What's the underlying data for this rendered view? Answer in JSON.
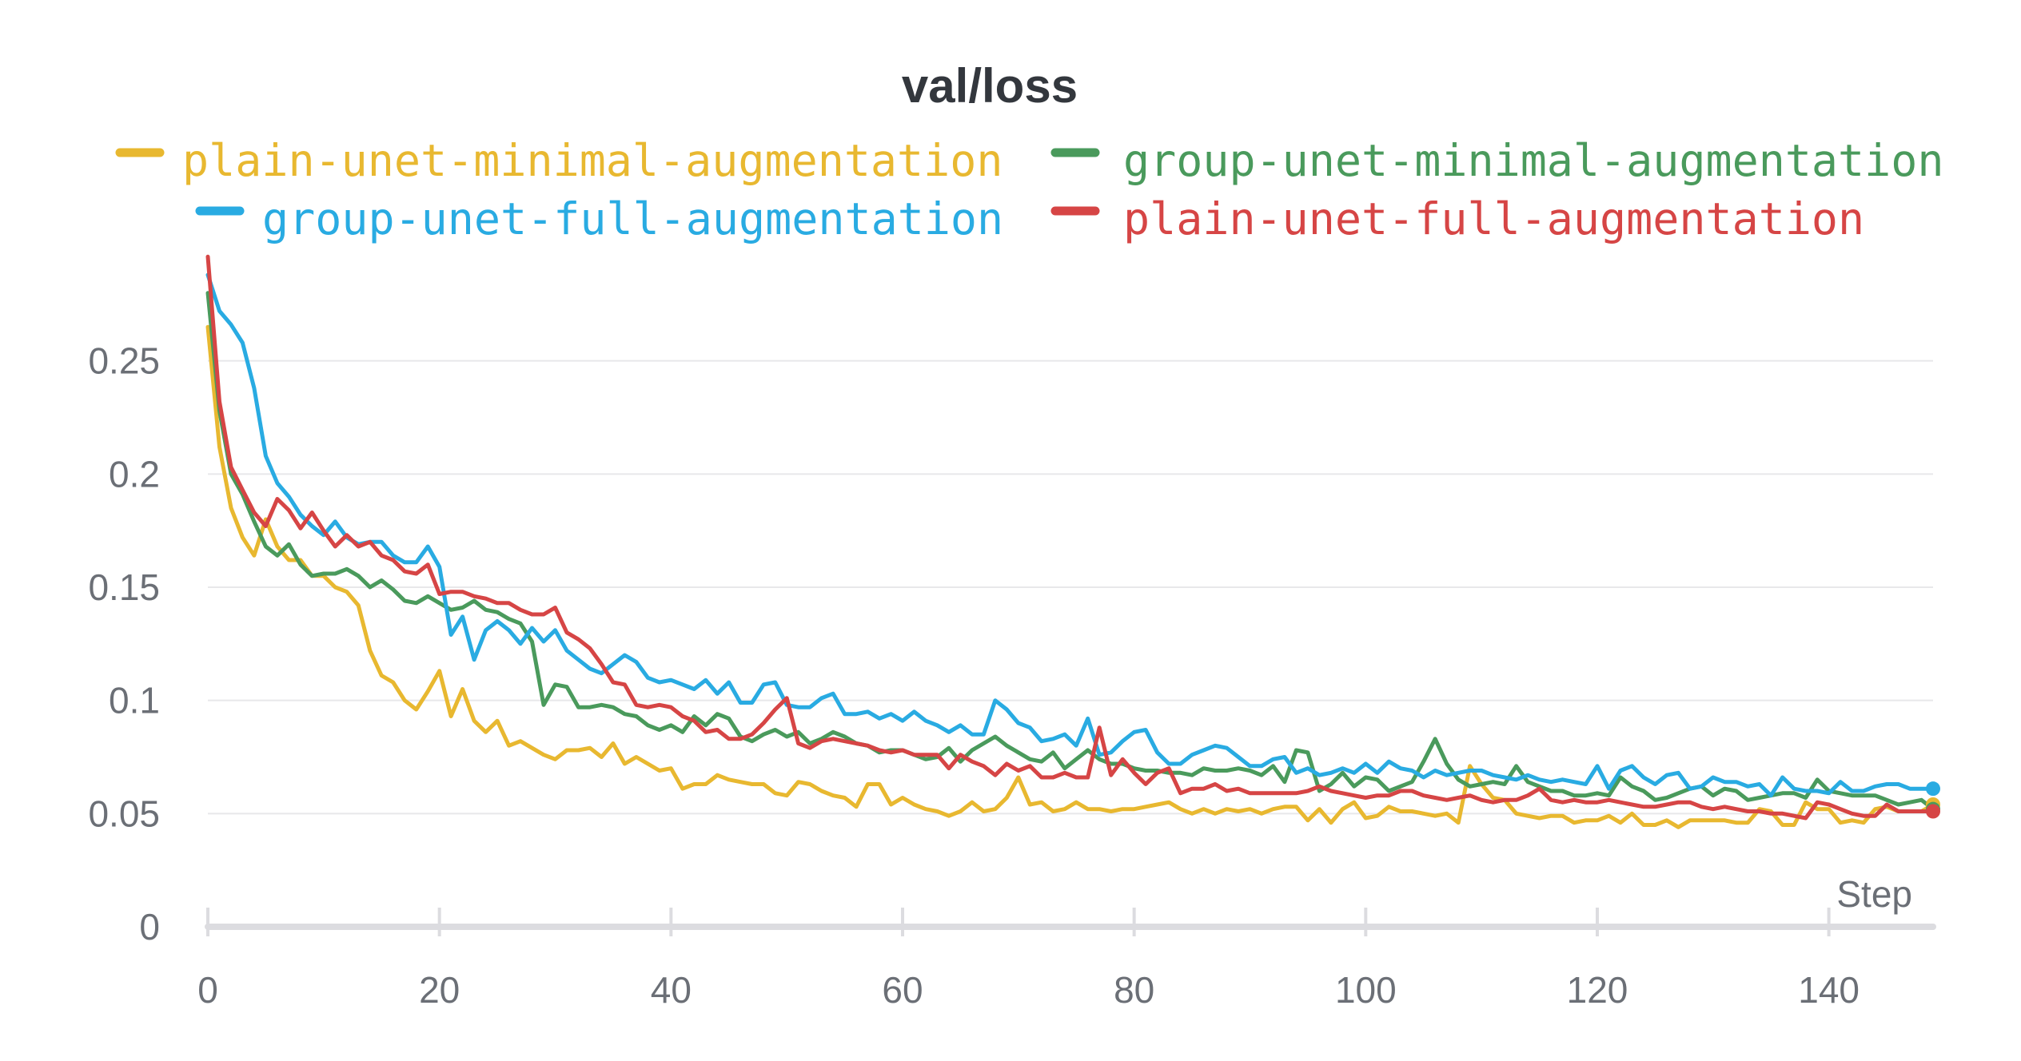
{
  "chart_data": {
    "type": "line",
    "title": "val/loss",
    "xlabel": "Step",
    "ylabel": "",
    "xlim": [
      0,
      149
    ],
    "ylim": [
      0,
      0.3
    ],
    "xticks": [
      0,
      20,
      40,
      60,
      80,
      100,
      120,
      140
    ],
    "xtick_labels": [
      "0",
      "20",
      "40",
      "60",
      "80",
      "100",
      "120",
      "140"
    ],
    "yticks": [
      0,
      0.05,
      0.1,
      0.15,
      0.2,
      0.25
    ],
    "ytick_labels": [
      "0",
      "0.05",
      "0.1",
      "0.15",
      "0.2",
      "0.25"
    ],
    "grid": true,
    "legend_position": "top",
    "series": [
      {
        "name": "plain-unet-minimal-augmentation",
        "color": "#e8b830",
        "values": [
          0.265,
          0.212,
          0.185,
          0.172,
          0.164,
          0.18,
          0.168,
          0.162,
          0.162,
          0.155,
          0.155,
          0.15,
          0.148,
          0.142,
          0.122,
          0.111,
          0.108,
          0.1,
          0.096,
          0.104,
          0.113,
          0.093,
          0.105,
          0.091,
          0.086,
          0.091,
          0.08,
          0.082,
          0.079,
          0.076,
          0.074,
          0.078,
          0.078,
          0.079,
          0.075,
          0.081,
          0.072,
          0.075,
          0.072,
          0.069,
          0.07,
          0.061,
          0.063,
          0.063,
          0.067,
          0.065,
          0.064,
          0.063,
          0.063,
          0.059,
          0.058,
          0.064,
          0.063,
          0.06,
          0.058,
          0.057,
          0.053,
          0.063,
          0.063,
          0.054,
          0.057,
          0.054,
          0.052,
          0.051,
          0.049,
          0.051,
          0.055,
          0.051,
          0.052,
          0.057,
          0.066,
          0.054,
          0.055,
          0.051,
          0.052,
          0.055,
          0.052,
          0.052,
          0.051,
          0.052,
          0.052,
          0.053,
          0.054,
          0.055,
          0.052,
          0.05,
          0.052,
          0.05,
          0.052,
          0.051,
          0.052,
          0.05,
          0.052,
          0.053,
          0.053,
          0.047,
          0.052,
          0.046,
          0.052,
          0.055,
          0.048,
          0.049,
          0.053,
          0.051,
          0.051,
          0.05,
          0.049,
          0.05,
          0.046,
          0.071,
          0.063,
          0.057,
          0.056,
          0.05,
          0.049,
          0.048,
          0.049,
          0.049,
          0.046,
          0.047,
          0.047,
          0.049,
          0.046,
          0.05,
          0.045,
          0.045,
          0.047,
          0.044,
          0.047,
          0.047,
          0.047,
          0.047,
          0.046,
          0.046,
          0.052,
          0.051,
          0.045,
          0.045,
          0.055,
          0.052,
          0.052,
          0.046,
          0.047,
          0.046,
          0.052,
          0.053,
          0.051,
          0.051,
          0.051,
          0.054
        ]
      },
      {
        "name": "group-unet-minimal-augmentation",
        "color": "#4a9a5c",
        "values": [
          0.28,
          0.228,
          0.2,
          0.191,
          0.179,
          0.168,
          0.164,
          0.169,
          0.16,
          0.155,
          0.156,
          0.156,
          0.158,
          0.155,
          0.15,
          0.153,
          0.149,
          0.144,
          0.143,
          0.146,
          0.143,
          0.14,
          0.141,
          0.144,
          0.14,
          0.139,
          0.136,
          0.134,
          0.126,
          0.098,
          0.107,
          0.106,
          0.097,
          0.097,
          0.098,
          0.097,
          0.094,
          0.093,
          0.089,
          0.087,
          0.089,
          0.086,
          0.093,
          0.089,
          0.094,
          0.092,
          0.084,
          0.082,
          0.085,
          0.087,
          0.084,
          0.086,
          0.081,
          0.083,
          0.086,
          0.084,
          0.081,
          0.08,
          0.077,
          0.078,
          0.078,
          0.076,
          0.074,
          0.075,
          0.079,
          0.073,
          0.078,
          0.081,
          0.084,
          0.08,
          0.077,
          0.074,
          0.073,
          0.077,
          0.07,
          0.074,
          0.078,
          0.074,
          0.072,
          0.072,
          0.07,
          0.069,
          0.069,
          0.068,
          0.068,
          0.067,
          0.07,
          0.069,
          0.069,
          0.07,
          0.069,
          0.067,
          0.071,
          0.064,
          0.078,
          0.077,
          0.06,
          0.063,
          0.068,
          0.062,
          0.066,
          0.065,
          0.06,
          0.062,
          0.064,
          0.073,
          0.083,
          0.072,
          0.065,
          0.062,
          0.063,
          0.064,
          0.063,
          0.071,
          0.064,
          0.062,
          0.06,
          0.06,
          0.058,
          0.058,
          0.059,
          0.058,
          0.066,
          0.062,
          0.06,
          0.056,
          0.057,
          0.059,
          0.061,
          0.062,
          0.058,
          0.061,
          0.06,
          0.056,
          0.057,
          0.058,
          0.059,
          0.059,
          0.057,
          0.065,
          0.06,
          0.059,
          0.058,
          0.058,
          0.058,
          0.056,
          0.054,
          0.055,
          0.056,
          0.052
        ]
      },
      {
        "name": "group-unet-full-augmentation",
        "color": "#29abe2",
        "values": [
          0.288,
          0.272,
          0.266,
          0.258,
          0.238,
          0.208,
          0.196,
          0.19,
          0.182,
          0.177,
          0.173,
          0.179,
          0.172,
          0.169,
          0.17,
          0.17,
          0.164,
          0.161,
          0.161,
          0.168,
          0.159,
          0.129,
          0.137,
          0.118,
          0.131,
          0.135,
          0.131,
          0.125,
          0.132,
          0.126,
          0.131,
          0.122,
          0.118,
          0.114,
          0.112,
          0.116,
          0.12,
          0.117,
          0.11,
          0.108,
          0.109,
          0.107,
          0.105,
          0.109,
          0.103,
          0.108,
          0.099,
          0.099,
          0.107,
          0.108,
          0.098,
          0.097,
          0.097,
          0.101,
          0.103,
          0.094,
          0.094,
          0.095,
          0.092,
          0.094,
          0.091,
          0.095,
          0.091,
          0.089,
          0.086,
          0.089,
          0.085,
          0.085,
          0.1,
          0.096,
          0.09,
          0.088,
          0.082,
          0.083,
          0.085,
          0.08,
          0.092,
          0.076,
          0.077,
          0.082,
          0.086,
          0.087,
          0.077,
          0.072,
          0.072,
          0.076,
          0.078,
          0.08,
          0.079,
          0.075,
          0.071,
          0.071,
          0.074,
          0.075,
          0.068,
          0.07,
          0.067,
          0.068,
          0.07,
          0.068,
          0.072,
          0.068,
          0.073,
          0.07,
          0.069,
          0.066,
          0.069,
          0.067,
          0.068,
          0.069,
          0.069,
          0.067,
          0.066,
          0.065,
          0.067,
          0.065,
          0.064,
          0.065,
          0.064,
          0.063,
          0.071,
          0.061,
          0.069,
          0.071,
          0.066,
          0.063,
          0.067,
          0.068,
          0.061,
          0.062,
          0.066,
          0.064,
          0.064,
          0.062,
          0.063,
          0.058,
          0.066,
          0.061,
          0.06,
          0.06,
          0.059,
          0.064,
          0.06,
          0.06,
          0.062,
          0.063,
          0.063,
          0.061,
          0.061,
          0.061
        ]
      },
      {
        "name": "plain-unet-full-augmentation",
        "color": "#d64545",
        "values": [
          0.296,
          0.232,
          0.203,
          0.193,
          0.183,
          0.177,
          0.189,
          0.184,
          0.176,
          0.183,
          0.175,
          0.168,
          0.173,
          0.168,
          0.17,
          0.164,
          0.162,
          0.157,
          0.156,
          0.16,
          0.147,
          0.148,
          0.148,
          0.146,
          0.145,
          0.143,
          0.143,
          0.14,
          0.138,
          0.138,
          0.141,
          0.13,
          0.127,
          0.123,
          0.116,
          0.108,
          0.107,
          0.098,
          0.097,
          0.098,
          0.097,
          0.093,
          0.091,
          0.086,
          0.087,
          0.083,
          0.083,
          0.085,
          0.09,
          0.096,
          0.101,
          0.081,
          0.079,
          0.082,
          0.083,
          0.082,
          0.081,
          0.08,
          0.078,
          0.077,
          0.078,
          0.076,
          0.076,
          0.076,
          0.07,
          0.076,
          0.073,
          0.071,
          0.067,
          0.072,
          0.069,
          0.071,
          0.066,
          0.066,
          0.068,
          0.066,
          0.066,
          0.088,
          0.067,
          0.074,
          0.068,
          0.063,
          0.068,
          0.07,
          0.059,
          0.061,
          0.061,
          0.063,
          0.06,
          0.061,
          0.059,
          0.059,
          0.059,
          0.059,
          0.059,
          0.06,
          0.062,
          0.06,
          0.059,
          0.058,
          0.057,
          0.058,
          0.058,
          0.06,
          0.06,
          0.058,
          0.057,
          0.056,
          0.057,
          0.058,
          0.056,
          0.055,
          0.056,
          0.056,
          0.058,
          0.061,
          0.056,
          0.055,
          0.056,
          0.055,
          0.055,
          0.056,
          0.055,
          0.054,
          0.053,
          0.053,
          0.054,
          0.055,
          0.055,
          0.053,
          0.052,
          0.053,
          0.052,
          0.051,
          0.051,
          0.05,
          0.05,
          0.049,
          0.048,
          0.055,
          0.054,
          0.052,
          0.05,
          0.049,
          0.049,
          0.054,
          0.051,
          0.051,
          0.051,
          0.051
        ]
      }
    ]
  }
}
